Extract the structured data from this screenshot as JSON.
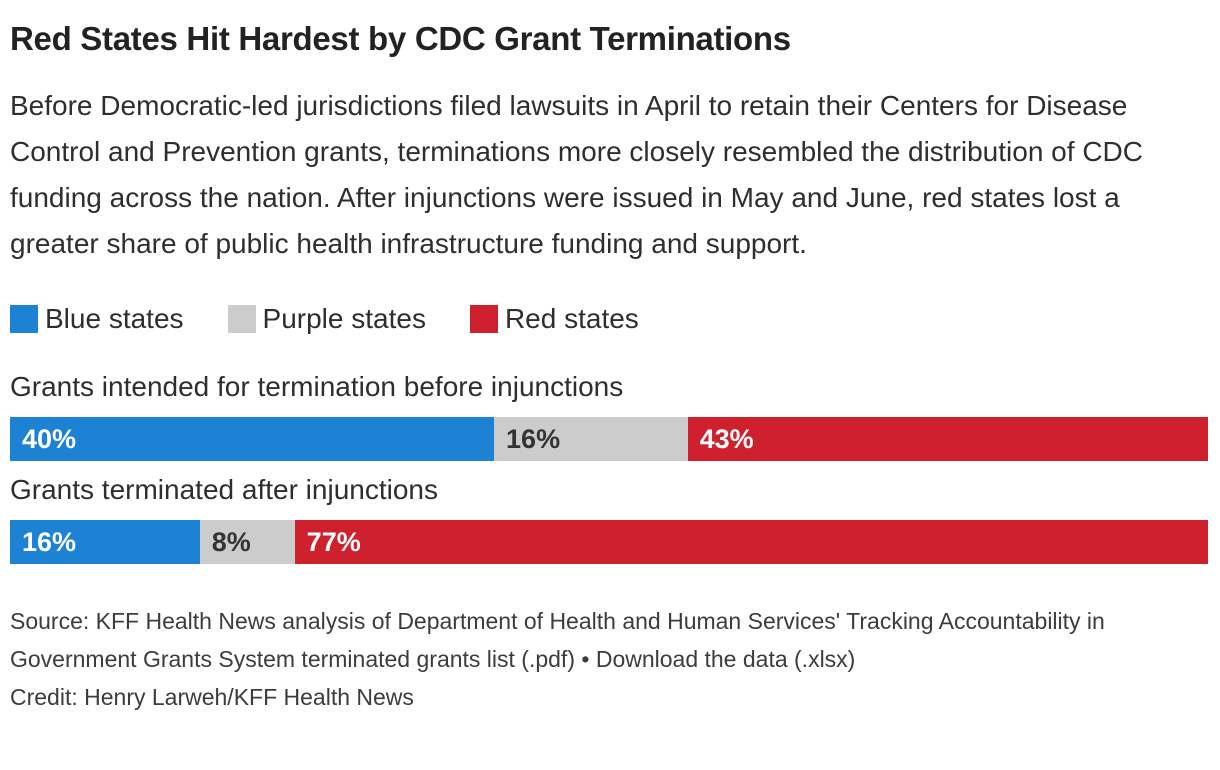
{
  "header": {
    "title": "Red States Hit Hardest by CDC Grant Terminations",
    "description": "Before Democratic-led jurisdictions filed lawsuits in April to retain their Centers for Disease Control and Prevention grants, terminations more closely resembled the distribution of CDC funding across the nation. After injunctions were issued in May and June, red states lost a greater share of public health infrastructure funding and support."
  },
  "chart_data": {
    "type": "bar",
    "stacked": true,
    "orientation": "horizontal",
    "unit": "percent",
    "xlim": [
      0,
      100
    ],
    "legend_position": "top",
    "categories": [
      "Grants intended for termination before injunctions",
      "Grants terminated after injunctions"
    ],
    "series": [
      {
        "name": "Blue states",
        "color": "#1e82d4",
        "values": [
          40,
          16
        ],
        "display": [
          "40%",
          "16%"
        ]
      },
      {
        "name": "Purple states",
        "color": "#cccccc",
        "values": [
          16,
          8
        ],
        "display": [
          "16%",
          "8%"
        ]
      },
      {
        "name": "Red states",
        "color": "#cf202e",
        "values": [
          43,
          77
        ],
        "display": [
          "43%",
          "77%"
        ]
      }
    ],
    "value_label_colors": [
      "#ffffff",
      "#333333",
      "#ffffff"
    ]
  },
  "footer": {
    "source_prefix": "Source: KFF Health News analysis of Department of Health and Human Services' Tracking Accountability in Government Grants System terminated grants list (.pdf) • ",
    "download_label": "Download the data (.xlsx)",
    "credit": "Credit: Henry Larweh/KFF Health News"
  }
}
